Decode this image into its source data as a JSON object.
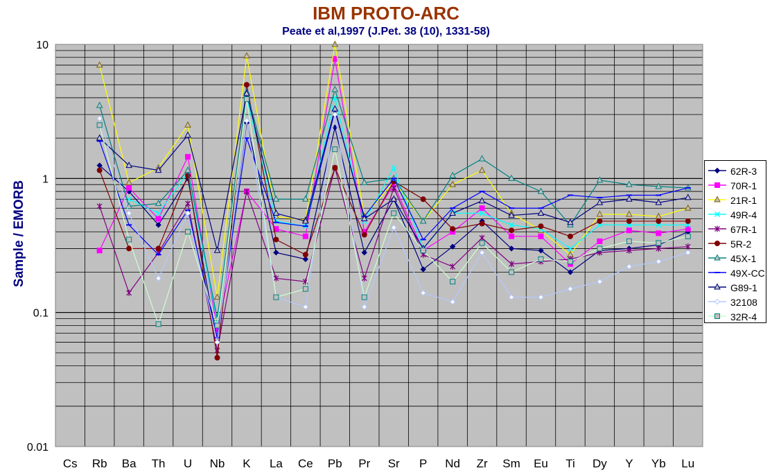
{
  "chart_data": {
    "type": "line",
    "title": "IBM PROTO-ARC",
    "subtitle": "Peate et al,1997 (J.Pet. 38 (10), 1331-58)",
    "ylabel": "Sample / EMORB",
    "xlabel": "",
    "yscale": "log",
    "ylim": [
      0.01,
      10
    ],
    "yticks": [
      "10",
      "1",
      "0.1",
      "0.01"
    ],
    "grid": true,
    "legend_position": "right",
    "categories": [
      "Cs",
      "Rb",
      "Ba",
      "Th",
      "U",
      "Nb",
      "K",
      "La",
      "Ce",
      "Pb",
      "Pr",
      "Sr",
      "P",
      "Nd",
      "Zr",
      "Sm",
      "Eu",
      "Ti",
      "Dy",
      "Y",
      "Yb",
      "Lu"
    ],
    "series": [
      {
        "name": "62R-3",
        "color": "#000080",
        "marker": "diamond",
        "values": [
          null,
          1.25,
          0.8,
          0.45,
          1.0,
          0.06,
          2.6,
          0.28,
          0.25,
          2.4,
          0.28,
          0.7,
          0.21,
          0.31,
          0.48,
          0.3,
          0.29,
          0.2,
          0.29,
          0.3,
          0.32,
          0.4
        ]
      },
      {
        "name": "70R-1",
        "color": "#ff00ff",
        "marker": "square",
        "values": [
          null,
          0.29,
          0.85,
          0.5,
          1.45,
          0.075,
          0.8,
          0.42,
          0.37,
          7.8,
          0.4,
          0.9,
          0.29,
          0.4,
          0.6,
          0.37,
          0.37,
          0.23,
          0.34,
          0.41,
          0.39,
          0.42
        ]
      },
      {
        "name": "21R-1",
        "color": "#ffff00",
        "marker": "triangle",
        "values": [
          null,
          7.0,
          0.93,
          1.2,
          2.5,
          0.13,
          8.2,
          0.52,
          0.49,
          10.0,
          0.52,
          0.95,
          0.48,
          0.9,
          1.15,
          0.55,
          0.41,
          0.27,
          0.54,
          0.54,
          0.52,
          0.6
        ]
      },
      {
        "name": "49R-4",
        "color": "#00ffff",
        "marker": "x",
        "values": [
          null,
          null,
          0.7,
          0.55,
          1.1,
          0.085,
          4.0,
          0.48,
          0.44,
          4.0,
          0.48,
          1.2,
          0.3,
          0.55,
          0.55,
          0.45,
          0.42,
          0.3,
          0.45,
          0.45,
          0.45,
          0.45
        ]
      },
      {
        "name": "67R-1",
        "color": "#800080",
        "marker": "star",
        "values": [
          null,
          0.62,
          0.14,
          0.28,
          0.65,
          0.052,
          0.8,
          0.18,
          0.17,
          1.2,
          0.18,
          0.85,
          0.27,
          0.22,
          0.36,
          0.23,
          0.24,
          0.25,
          0.28,
          0.29,
          0.3,
          0.31
        ]
      },
      {
        "name": "5R-2",
        "color": "#800000",
        "marker": "circle",
        "values": [
          null,
          1.15,
          0.3,
          0.3,
          1.05,
          0.046,
          5.0,
          0.35,
          0.27,
          1.2,
          0.38,
          0.95,
          0.7,
          0.42,
          0.46,
          0.41,
          0.44,
          0.37,
          0.48,
          0.48,
          0.48,
          0.48
        ]
      },
      {
        "name": "45X-1",
        "color": "#008080",
        "marker": "triangle",
        "values": [
          null,
          3.5,
          0.62,
          0.65,
          1.15,
          0.09,
          4.4,
          0.7,
          0.7,
          4.6,
          0.93,
          1.0,
          0.48,
          1.05,
          1.4,
          1.0,
          0.8,
          0.45,
          0.97,
          0.9,
          0.87,
          0.85
        ]
      },
      {
        "name": "49X-CC",
        "color": "#0000ff",
        "marker": "dash",
        "values": [
          null,
          1.9,
          0.45,
          0.27,
          0.58,
          0.065,
          2.0,
          0.47,
          0.44,
          3.2,
          0.52,
          1.0,
          0.35,
          0.6,
          0.8,
          0.6,
          0.6,
          0.75,
          0.72,
          0.75,
          0.75,
          0.85
        ]
      },
      {
        "name": "G89-1",
        "color": "#000080",
        "marker": "triangle",
        "values": [
          null,
          2.0,
          1.25,
          1.15,
          2.1,
          0.29,
          4.3,
          0.55,
          0.48,
          3.3,
          0.5,
          0.7,
          0.3,
          0.55,
          0.68,
          0.53,
          0.55,
          0.47,
          0.66,
          0.7,
          0.66,
          0.72
        ]
      },
      {
        "name": "32108",
        "color": "#b4c8ff",
        "marker": "diamond",
        "values": [
          null,
          2.8,
          0.55,
          0.18,
          0.55,
          0.06,
          2.7,
          0.13,
          0.11,
          3.0,
          0.11,
          0.43,
          0.14,
          0.12,
          0.28,
          0.13,
          0.13,
          0.15,
          0.17,
          0.22,
          0.24,
          0.28
        ]
      },
      {
        "name": "32R-4",
        "color": "#ccffcc",
        "marker": "square",
        "values": [
          null,
          2.5,
          0.35,
          0.082,
          0.4,
          0.08,
          3.9,
          0.13,
          0.15,
          1.65,
          0.13,
          0.55,
          0.29,
          0.17,
          0.33,
          0.2,
          0.25,
          0.24,
          0.3,
          0.34,
          0.33,
          0.37
        ]
      }
    ]
  }
}
